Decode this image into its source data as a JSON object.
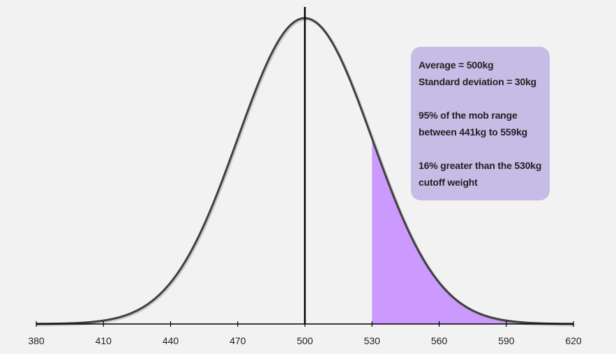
{
  "chart_data": {
    "type": "area",
    "title": "",
    "xlabel": "",
    "ylabel": "",
    "distribution": "normal",
    "mean": 500,
    "std_dev": 30,
    "xlim": [
      380,
      620
    ],
    "x_ticks": [
      380,
      410,
      440,
      470,
      500,
      530,
      560,
      590,
      620
    ],
    "mean_line_x": 500,
    "shaded_region": {
      "from": 530,
      "to": 620
    },
    "grid": false,
    "legend": "none",
    "colors": {
      "curve": "#404040",
      "mean_line": "#000000",
      "shaded_fill": "#cc99ff",
      "axis": "#000000",
      "background": "#f2f2f2",
      "annotation_box": "#c6bce6"
    },
    "annotation": {
      "position": "top-right",
      "lines": [
        "Average = 500kg",
        "Standard deviation = 30kg",
        "",
        "95% of the mob range",
        "between 441kg to 559kg",
        "",
        "16% greater than the 530kg",
        "cutoff weight"
      ]
    }
  }
}
